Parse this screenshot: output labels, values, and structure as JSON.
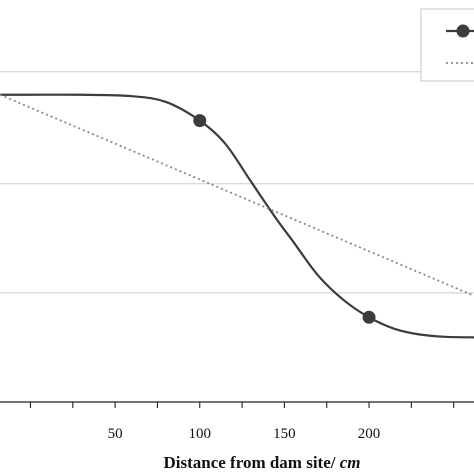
{
  "chart_data": {
    "type": "line",
    "xlabel": "Distance from dam site/",
    "xlabel_unit": "cm",
    "xlim": [
      -18,
      262
    ],
    "ylim": [
      0,
      14
    ],
    "x_ticks": [
      50,
      100,
      150,
      200
    ],
    "x_tick_labels": [
      "50",
      "100",
      "150",
      "200"
    ],
    "y_gridlines": [
      3.8,
      7.6,
      11.5
    ],
    "grid": true,
    "legend": "top-right",
    "series": [
      {
        "style": "solid-with-markers",
        "color": "#3c3c3c",
        "curve": [
          [
            -18,
            10.7
          ],
          [
            0,
            10.7
          ],
          [
            30,
            10.7
          ],
          [
            60,
            10.65
          ],
          [
            80,
            10.45
          ],
          [
            100,
            9.8
          ],
          [
            115,
            9.0
          ],
          [
            130,
            7.7
          ],
          [
            145,
            6.4
          ],
          [
            155,
            5.6
          ],
          [
            170,
            4.4
          ],
          [
            185,
            3.55
          ],
          [
            200,
            2.95
          ],
          [
            215,
            2.55
          ],
          [
            230,
            2.35
          ],
          [
            245,
            2.27
          ],
          [
            262,
            2.25
          ]
        ],
        "markers": [
          [
            100,
            9.8
          ],
          [
            200,
            2.95
          ]
        ]
      },
      {
        "style": "dotted-trend",
        "color": "#888888",
        "curve": [
          [
            -18,
            10.7
          ],
          [
            262,
            3.7
          ]
        ]
      }
    ]
  }
}
